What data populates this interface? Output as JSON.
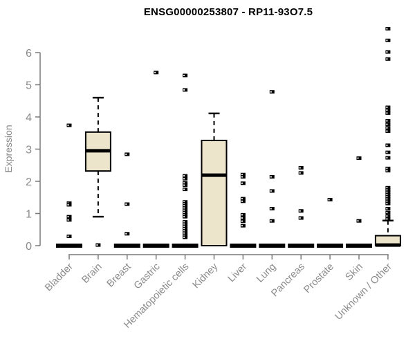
{
  "chart_data": {
    "type": "boxplot",
    "title": "ENSG00000253807 - RP11-93O7.5",
    "ylabel": "Expression",
    "xlabel": "",
    "ylim": [
      0,
      6.9
    ],
    "yticks": [
      0,
      1,
      2,
      3,
      4,
      5,
      6
    ],
    "grid": false,
    "legend": "none",
    "categories": [
      "Bladder",
      "Brain",
      "Breast",
      "Gastric",
      "Hematopoietic cells",
      "Kidney",
      "Liver",
      "Lung",
      "Pancreas",
      "Prostate",
      "Skin",
      "Unknown / Other"
    ],
    "boxes": [
      {
        "category": "Bladder",
        "collapsed": true,
        "median": 0,
        "outliers": [
          3.74,
          1.32,
          1.27,
          0.9,
          0.8,
          0.29
        ]
      },
      {
        "category": "Brain",
        "collapsed": false,
        "q1": 2.32,
        "median": 2.95,
        "q3": 3.53,
        "whisker_low": 0.9,
        "whisker_high": 4.6,
        "outliers": [
          0.02
        ]
      },
      {
        "category": "Breast",
        "collapsed": true,
        "median": 0,
        "outliers": [
          2.84,
          1.29,
          0.37
        ]
      },
      {
        "category": "Gastric",
        "collapsed": true,
        "median": 0,
        "outliers": [
          5.38
        ]
      },
      {
        "category": "Hematopoietic cells",
        "collapsed": true,
        "median": 0,
        "outliers": [
          5.29,
          4.84,
          2.17,
          2.08,
          1.95,
          1.88,
          1.75,
          1.36,
          1.3,
          1.24,
          1.17,
          1.1,
          1.03,
          0.96,
          0.9,
          0.74,
          0.67,
          0.6,
          0.53,
          0.46,
          0.39,
          0.32,
          0.26
        ]
      },
      {
        "category": "Kidney",
        "collapsed": false,
        "q1": 0.0,
        "median": 2.19,
        "q3": 3.27,
        "whisker_low": 0.0,
        "whisker_high": 4.11,
        "outliers": []
      },
      {
        "category": "Liver",
        "collapsed": true,
        "median": 0,
        "outliers": [
          2.21,
          2.14,
          1.94,
          1.46,
          1.38,
          0.96,
          0.86,
          0.76,
          0.62
        ]
      },
      {
        "category": "Lung",
        "collapsed": true,
        "median": 0,
        "outliers": [
          4.78,
          2.14,
          1.7,
          1.15,
          0.77
        ]
      },
      {
        "category": "Pancreas",
        "collapsed": true,
        "median": 0,
        "outliers": [
          2.42,
          2.26,
          1.08,
          0.86
        ]
      },
      {
        "category": "Prostate",
        "collapsed": true,
        "median": 0,
        "outliers": [
          1.43
        ]
      },
      {
        "category": "Skin",
        "collapsed": true,
        "median": 0,
        "outliers": [
          2.72,
          0.77
        ]
      },
      {
        "category": "Unknown / Other",
        "collapsed": false,
        "q1": 0.0,
        "median": 0.02,
        "q3": 0.31,
        "whisker_low": 0.0,
        "whisker_high": 0.78,
        "outliers": [
          6.74,
          6.38,
          6.02,
          5.8,
          4.3,
          4.21,
          4.12,
          3.88,
          3.77,
          3.66,
          3.56,
          3.12,
          2.9,
          2.73,
          2.4,
          2.33,
          1.8,
          1.73,
          1.66,
          1.59,
          1.52,
          1.45,
          1.38,
          1.31,
          1.15,
          1.03,
          0.92,
          0.83
        ]
      }
    ],
    "colors": {
      "box_fill": "#ece5cb",
      "box_stroke": "#000000",
      "median": "#000000",
      "whisker": "#000000",
      "outlier": "#000000",
      "axis": "#7a7a7a",
      "tick_label": "#8a8a8a",
      "title": "#000000",
      "background": "#ffffff"
    }
  }
}
